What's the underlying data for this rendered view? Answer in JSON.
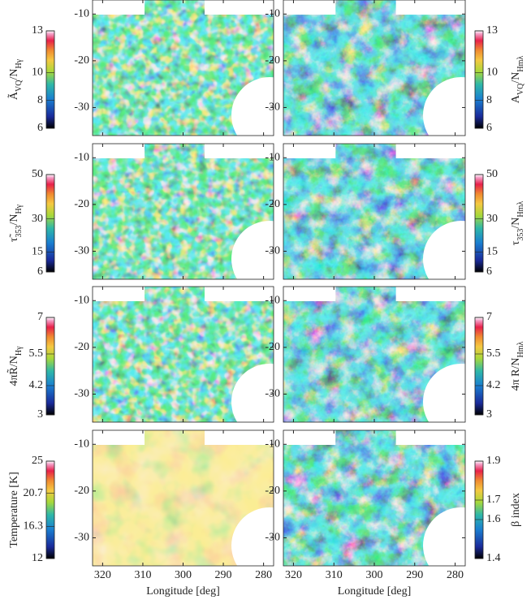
{
  "axes": {
    "xlim": [
      322.5,
      277.5
    ],
    "xticks": [
      320,
      310,
      300,
      290,
      280
    ],
    "ylim": [
      -36,
      -7
    ],
    "yticks": [
      -10,
      -20,
      -30
    ],
    "xlabel": "Longitude [deg]"
  },
  "panels": [
    {
      "label": [
        "Ã",
        "VQ",
        "/N",
        "Hγ"
      ],
      "clim": [
        6,
        13
      ],
      "cticks": [
        6,
        8,
        10,
        13
      ]
    },
    {
      "label": [
        "A",
        "VQ",
        "/N",
        "Hmλ"
      ],
      "clim": [
        6,
        13
      ],
      "cticks": [
        6,
        8,
        10,
        13
      ]
    },
    {
      "label": [
        "τ̃",
        "353",
        "/N",
        "Hγ"
      ],
      "clim": [
        6,
        50
      ],
      "cticks": [
        6,
        15,
        30,
        50
      ]
    },
    {
      "label": [
        "τ",
        "353",
        "/N",
        "Hmλ"
      ],
      "clim": [
        6,
        50
      ],
      "cticks": [
        6,
        15,
        30,
        50
      ]
    },
    {
      "label": [
        "4πR̃/N",
        "Hγ"
      ],
      "clim": [
        3,
        7
      ],
      "cticks": [
        3,
        4.2,
        5.5,
        7
      ]
    },
    {
      "label": [
        "4π R/N",
        "Hmλ"
      ],
      "clim": [
        3,
        7
      ],
      "cticks": [
        3,
        4.2,
        5.5,
        7
      ]
    },
    {
      "label": [
        "Temperature [K]"
      ],
      "clim": [
        12,
        25
      ],
      "cticks": [
        12,
        16.3,
        20.7,
        25
      ]
    },
    {
      "label": [
        "β index"
      ],
      "clim": [
        1.4,
        1.9
      ],
      "cticks": [
        1.4,
        1.6,
        1.7,
        1.9
      ]
    }
  ]
}
